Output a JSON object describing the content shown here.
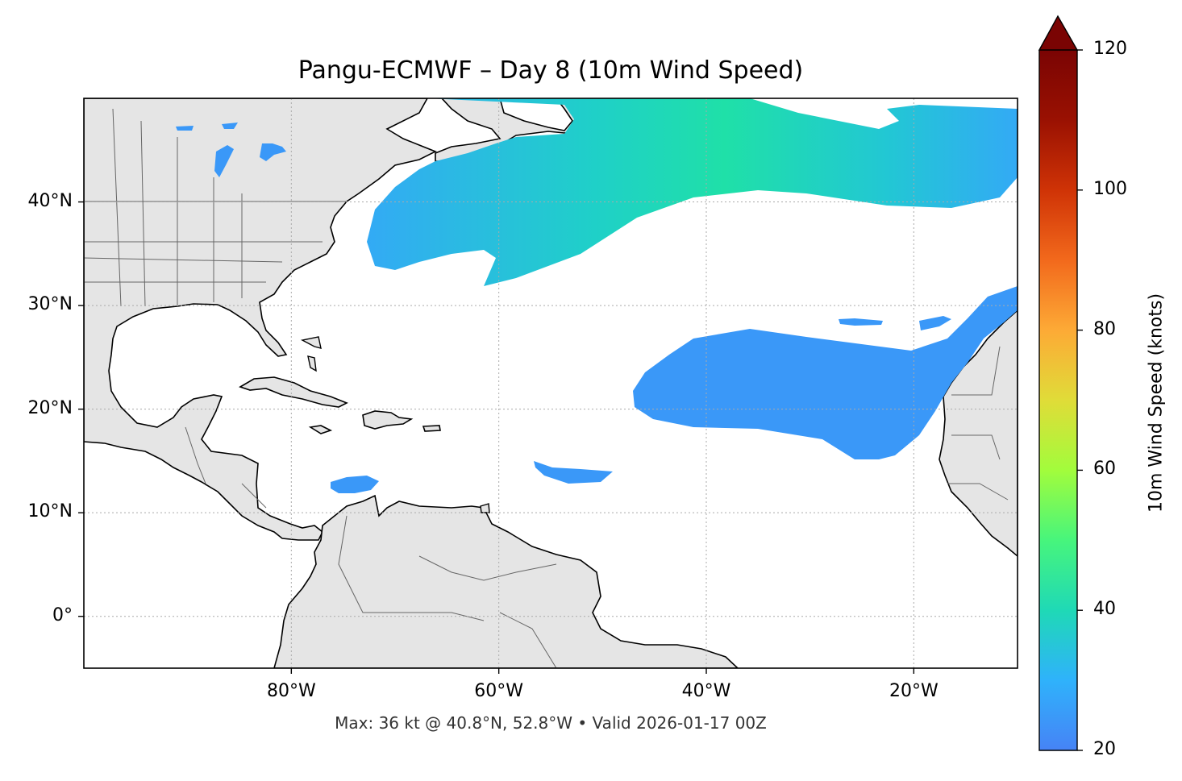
{
  "title": "Pangu-ECMWF – Day 8 (10m Wind Speed)",
  "footer": "Max: 36 kt @ 40.8°N, 52.8°W • Valid 2026-01-17 00Z",
  "map": {
    "lon_range": [
      -100,
      -10
    ],
    "lat_range": [
      -5,
      50
    ],
    "land_color": "#e5e5e5",
    "ocean_color": "#ffffff",
    "gridlines": true,
    "lat_ticks": [
      {
        "value": 40,
        "label": "40°N"
      },
      {
        "value": 30,
        "label": "30°N"
      },
      {
        "value": 20,
        "label": "20°N"
      },
      {
        "value": 10,
        "label": "10°N"
      },
      {
        "value": 0,
        "label": "0°"
      }
    ],
    "lon_ticks": [
      {
        "value": -80,
        "label": "80°W"
      },
      {
        "value": -60,
        "label": "60°W"
      },
      {
        "value": -40,
        "label": "40°W"
      },
      {
        "value": -20,
        "label": "20°W"
      }
    ]
  },
  "colorbar": {
    "label": "10m Wind Speed (knots)",
    "min": 20,
    "max": 120,
    "extend": "max",
    "ticks": [
      "20",
      "40",
      "60",
      "80",
      "100",
      "120"
    ],
    "colormap": "turbo",
    "stops": [
      "#4683f6",
      "#2fb2fb",
      "#1fd9b6",
      "#47f57c",
      "#a2fc3c",
      "#e0dc38",
      "#fdaa36",
      "#f2691c",
      "#cf3306",
      "#9a1102",
      "#7a0403"
    ]
  },
  "max_wind": {
    "value_kt": 36,
    "lat": 40.8,
    "lon": -52.8
  },
  "valid_time": "2026-01-17 00Z"
}
